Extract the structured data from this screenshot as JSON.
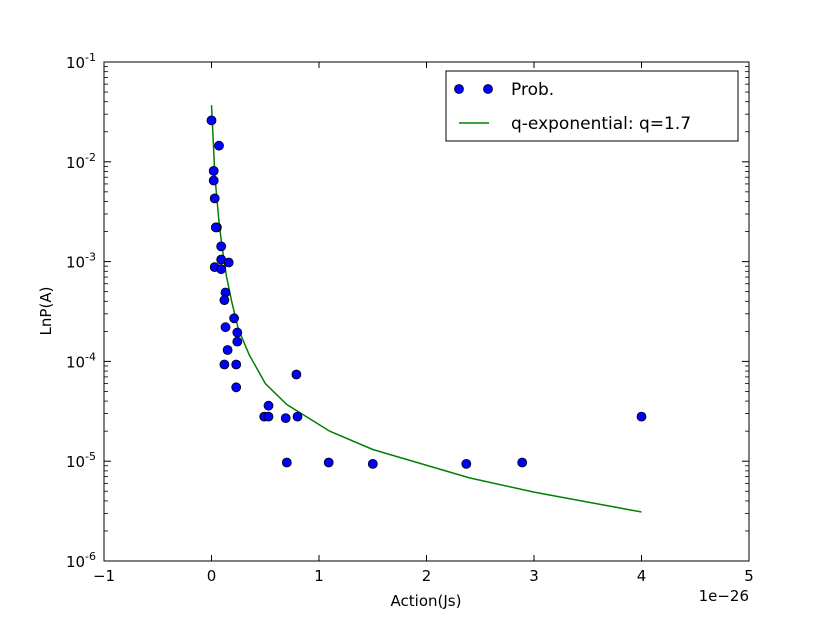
{
  "chart_data": {
    "type": "scatter",
    "xlabel": "Action(Js)",
    "ylabel": "LnP(A)",
    "x_scale_note": "1e−26",
    "xlim": [
      -1,
      5
    ],
    "ylim_log10": [
      -6,
      -1
    ],
    "y_scale": "log",
    "x_ticks": [
      -1,
      0,
      1,
      2,
      3,
      4,
      5
    ],
    "x_tick_labels": [
      "−1",
      "0",
      "1",
      "2",
      "3",
      "4",
      "5"
    ],
    "y_ticks_log10": [
      -6,
      -5,
      -4,
      -3,
      -2,
      -1
    ],
    "y_tick_labels": [
      {
        "base": "10",
        "exp": "-6"
      },
      {
        "base": "10",
        "exp": "-5"
      },
      {
        "base": "10",
        "exp": "-4"
      },
      {
        "base": "10",
        "exp": "-3"
      },
      {
        "base": "10",
        "exp": "-2"
      },
      {
        "base": "10",
        "exp": "-1"
      }
    ],
    "legend_position": "top-right",
    "series": [
      {
        "name": "Prob.",
        "kind": "markers",
        "color": "#0000ff",
        "points": [
          [
            0.0,
            0.026
          ],
          [
            0.07,
            0.0145
          ],
          [
            0.02,
            0.0081
          ],
          [
            0.02,
            0.0065
          ],
          [
            0.03,
            0.0043
          ],
          [
            0.05,
            0.0022
          ],
          [
            0.04,
            0.0022
          ],
          [
            0.09,
            0.00142
          ],
          [
            0.09,
            0.00105
          ],
          [
            0.16,
            0.00098
          ],
          [
            0.03,
            0.00088
          ],
          [
            0.09,
            0.00084
          ],
          [
            0.13,
            0.00049
          ],
          [
            0.12,
            0.00041
          ],
          [
            0.21,
            0.00027
          ],
          [
            0.13,
            0.00022
          ],
          [
            0.24,
            0.000195
          ],
          [
            0.24,
            0.000158
          ],
          [
            0.15,
            0.00013
          ],
          [
            0.12,
            9.3e-05
          ],
          [
            0.23,
            9.3e-05
          ],
          [
            0.23,
            5.5e-05
          ],
          [
            0.79,
            7.4e-05
          ],
          [
            0.53,
            3.6e-05
          ],
          [
            0.49,
            2.8e-05
          ],
          [
            0.53,
            2.8e-05
          ],
          [
            0.69,
            2.7e-05
          ],
          [
            0.8,
            2.8e-05
          ],
          [
            0.7,
            9.7e-06
          ],
          [
            1.09,
            9.7e-06
          ],
          [
            1.5,
            9.4e-06
          ],
          [
            2.37,
            9.4e-06
          ],
          [
            2.89,
            9.7e-06
          ],
          [
            4.0,
            2.8e-05
          ]
        ]
      },
      {
        "name": "q-exponential: q=1.7",
        "kind": "line",
        "color": "#008000",
        "points": [
          [
            0.0,
            0.037
          ],
          [
            0.01,
            0.022
          ],
          [
            0.02,
            0.013
          ],
          [
            0.03,
            0.0075
          ],
          [
            0.05,
            0.0043
          ],
          [
            0.07,
            0.0025
          ],
          [
            0.1,
            0.00135
          ],
          [
            0.14,
            0.0007
          ],
          [
            0.19,
            0.00039
          ],
          [
            0.25,
            0.00021
          ],
          [
            0.35,
            0.000117
          ],
          [
            0.5,
            6e-05
          ],
          [
            0.7,
            3.7e-05
          ],
          [
            1.1,
            2e-05
          ],
          [
            1.5,
            1.31e-05
          ],
          [
            2.4,
            6.8e-06
          ],
          [
            3.0,
            4.9e-06
          ],
          [
            4.0,
            3.1e-06
          ]
        ]
      }
    ]
  }
}
